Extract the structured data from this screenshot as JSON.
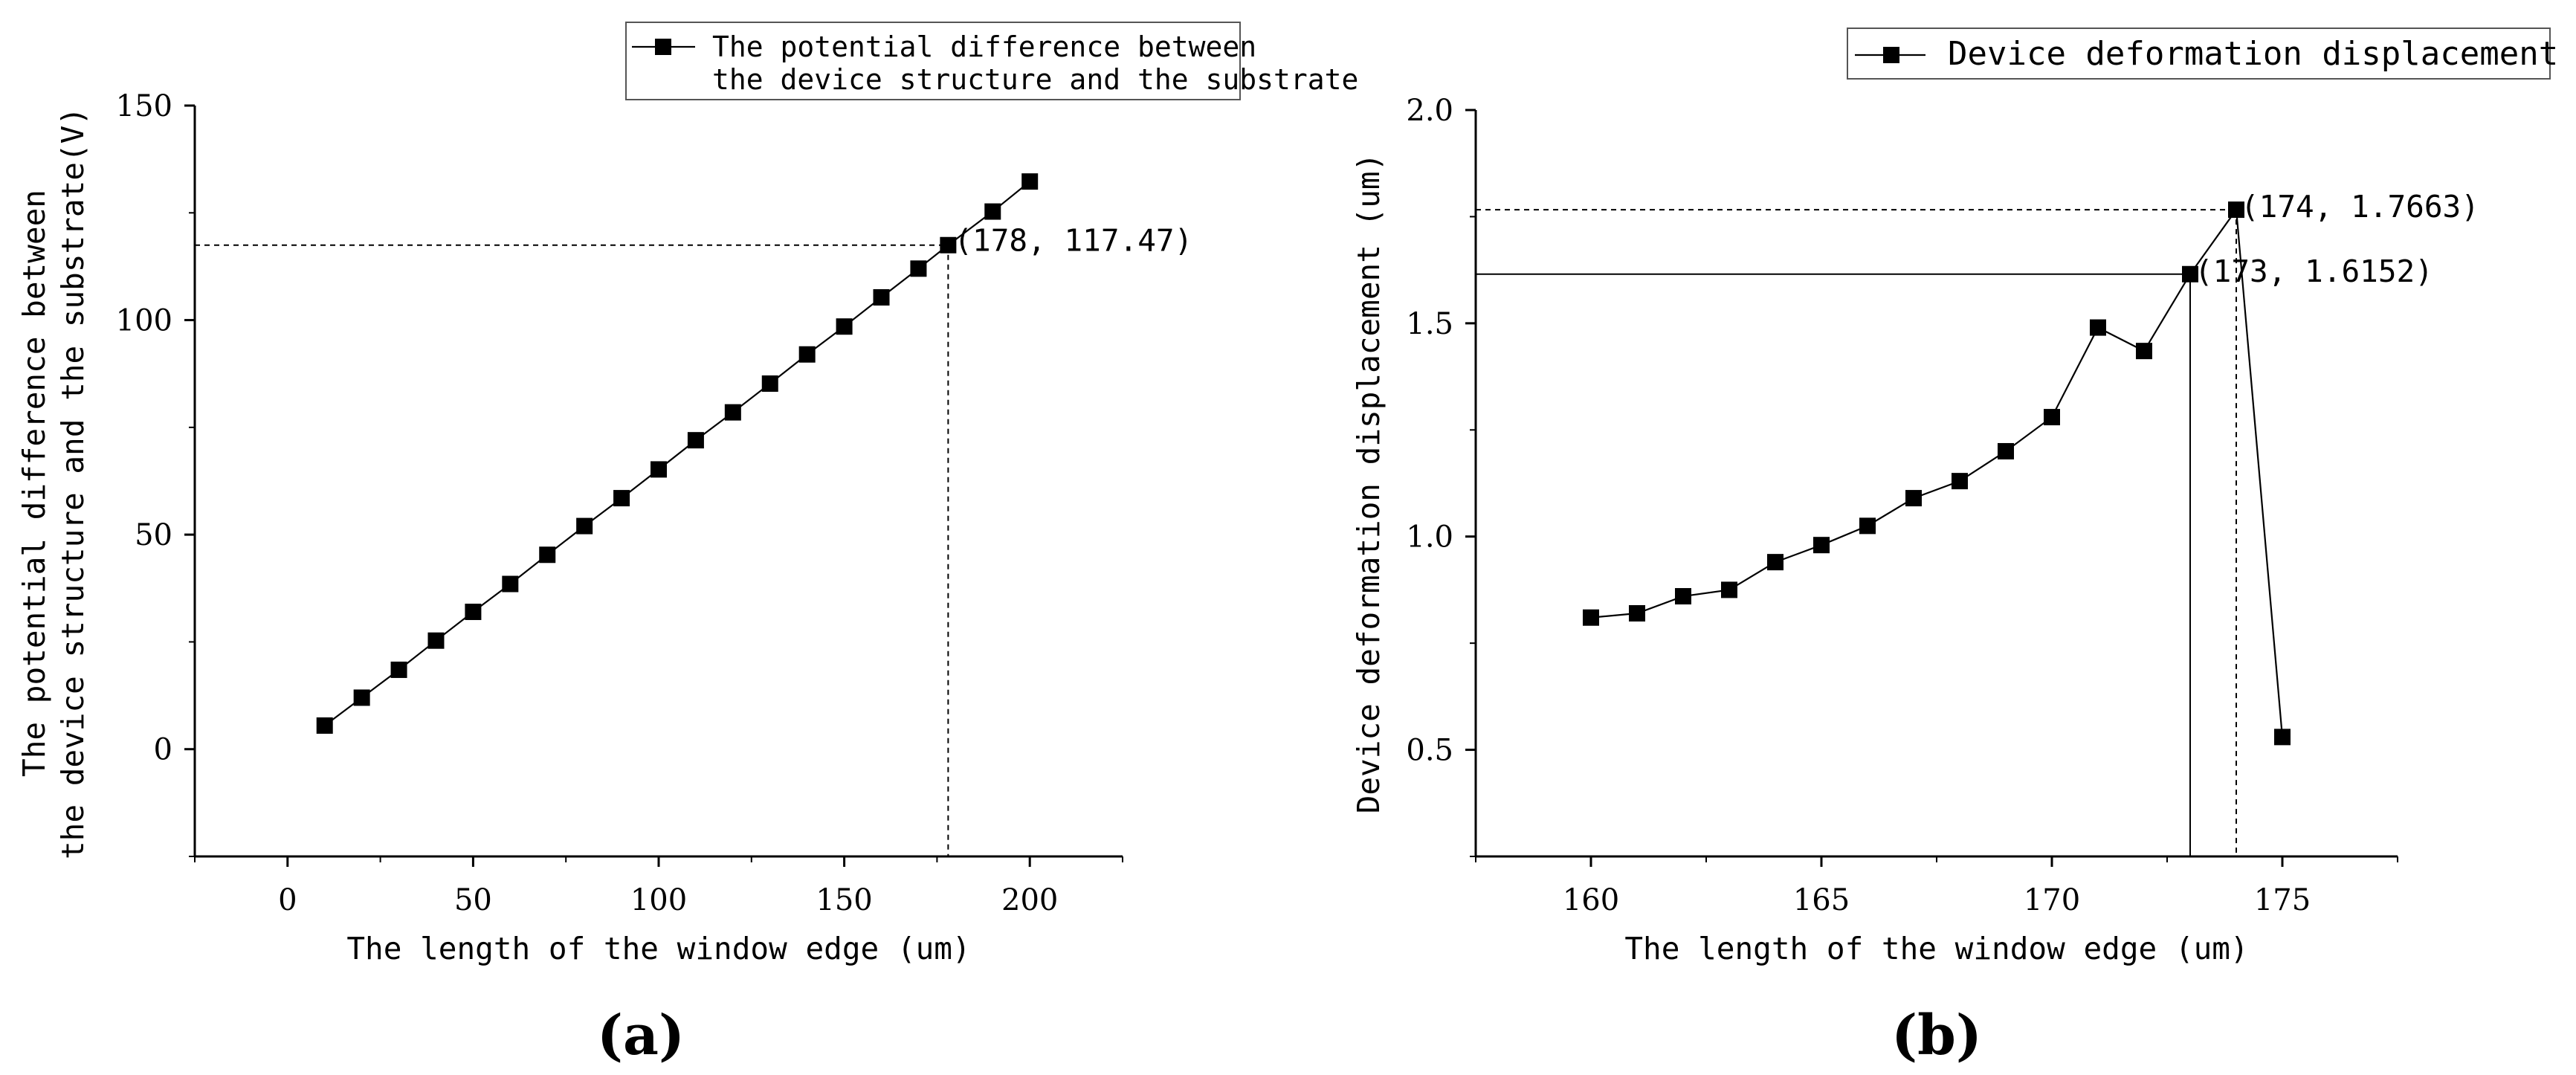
{
  "chart_data": [
    {
      "type": "line",
      "panel_label": "(a)",
      "xlabel": "The length of the window edge (um)",
      "ylabel": [
        "The potential difference between",
        "the device structure and the substrate(V)"
      ],
      "xlim": [
        -25,
        225
      ],
      "ylim": [
        -25,
        150
      ],
      "xticks": [
        0,
        50,
        100,
        150,
        200
      ],
      "yticks": [
        0,
        50,
        100,
        150
      ],
      "legend": {
        "position": "top-right",
        "lines": [
          "The potential difference between",
          "the device structure and the substrate"
        ]
      },
      "series": [
        {
          "name": "The potential difference between the device structure and the substrate",
          "marker": "square",
          "x": [
            10,
            20,
            30,
            40,
            50,
            60,
            70,
            80,
            90,
            100,
            110,
            120,
            130,
            140,
            150,
            160,
            170,
            178,
            190,
            200
          ],
          "y": [
            5.5,
            12,
            18.5,
            25.3,
            32,
            38.5,
            45.3,
            52,
            58.5,
            65.2,
            72,
            78.5,
            85.2,
            92,
            98.5,
            105.3,
            112,
            117.47,
            125.3,
            132.3
          ]
        }
      ],
      "annotations": [
        {
          "text": "(178, 117.47)",
          "x": 178,
          "y": 117.47,
          "guide": "dashed"
        }
      ]
    },
    {
      "type": "line",
      "panel_label": "(b)",
      "xlabel": "The length of the window edge (um)",
      "ylabel": [
        "Device deformation displacement (um)"
      ],
      "xlim": [
        157.5,
        177.5
      ],
      "ylim": [
        0.25,
        2.0
      ],
      "xticks": [
        160,
        165,
        170,
        175
      ],
      "yticks": [
        0.5,
        1.0,
        1.5,
        2.0
      ],
      "legend": {
        "position": "top-right",
        "lines": [
          "Device deformation displacement"
        ]
      },
      "series": [
        {
          "name": "Device deformation displacement",
          "marker": "square",
          "x": [
            160,
            161,
            162,
            163,
            164,
            165,
            166,
            167,
            168,
            169,
            170,
            171,
            172,
            173,
            174,
            175
          ],
          "y": [
            0.81,
            0.82,
            0.86,
            0.875,
            0.94,
            0.98,
            1.025,
            1.09,
            1.13,
            1.2,
            1.28,
            1.49,
            1.435,
            1.6152,
            1.7663,
            0.53
          ]
        }
      ],
      "annotations": [
        {
          "text": "(173, 1.6152)",
          "x": 173,
          "y": 1.6152,
          "guide": "solid"
        },
        {
          "text": "(174, 1.7663)",
          "x": 174,
          "y": 1.7663,
          "guide": "dashed"
        }
      ]
    }
  ]
}
